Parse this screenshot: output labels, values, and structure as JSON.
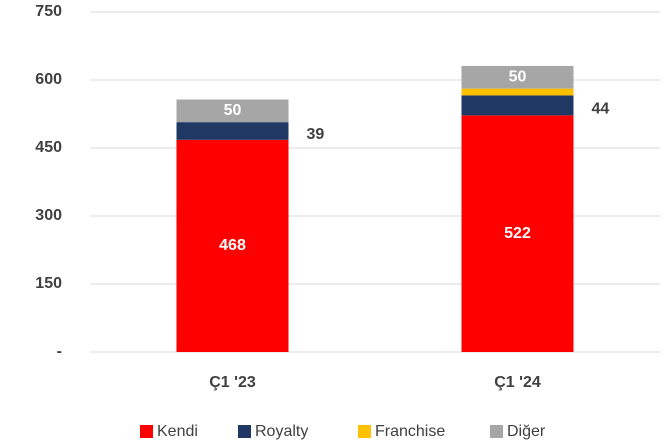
{
  "chart_data": {
    "type": "stacked_bar",
    "categories": [
      "Ç1 '23",
      "Ç1 '24"
    ],
    "series": [
      {
        "name": "Kendi",
        "color": "#ff0000",
        "values": [
          468,
          522
        ],
        "labels": "inside"
      },
      {
        "name": "Royalty",
        "color": "#1f3864",
        "values": [
          39,
          44
        ],
        "labels": "right"
      },
      {
        "name": "Franchise",
        "color": "#ffc000",
        "values": [
          0,
          15
        ]
      },
      {
        "name": "Diğer",
        "color": "#a6a6a6",
        "values": [
          50,
          50
        ],
        "labels": "inside"
      }
    ],
    "ylim": [
      0,
      750
    ],
    "yticks": [
      {
        "value": 0,
        "label": "-"
      },
      150,
      300,
      450,
      600,
      750
    ],
    "grid": true,
    "legend": "bottom"
  }
}
